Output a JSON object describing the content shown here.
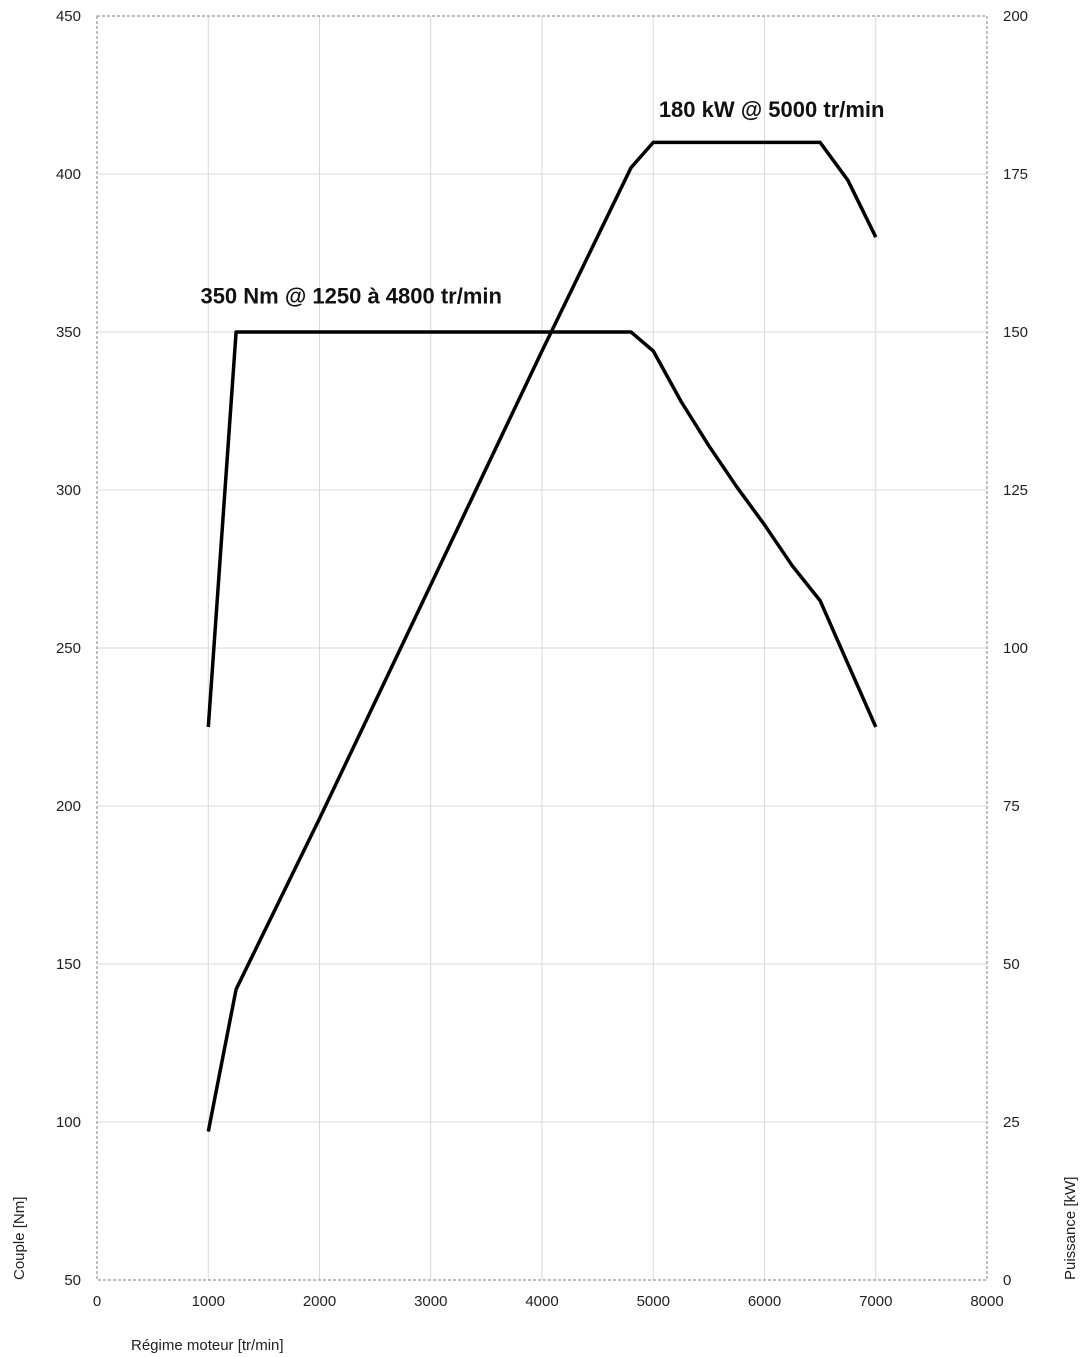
{
  "chart_data": {
    "type": "line",
    "title": "",
    "xlabel": "Régime moteur [tr/min]",
    "ylabel_left": "Couple [Nm]",
    "ylabel_right": "Puissance [kW]",
    "xlim": [
      0,
      8000
    ],
    "ylim_left": [
      50,
      450
    ],
    "ylim_right": [
      0,
      200
    ],
    "grid": true,
    "x_ticks": [
      "0",
      "1000",
      "2000",
      "3000",
      "4000",
      "5000",
      "6000",
      "7000",
      "8000"
    ],
    "y_left_ticks": [
      "50",
      "100",
      "150",
      "200",
      "250",
      "300",
      "350",
      "400",
      "450"
    ],
    "y_right_ticks": [
      "0",
      "25",
      "50",
      "75",
      "100",
      "125",
      "150",
      "175",
      "200"
    ],
    "series": [
      {
        "axis": "left",
        "x": [
          1000,
          1250,
          4800,
          5000,
          5250,
          5500,
          5750,
          6000,
          6250,
          6500,
          6750,
          7000
        ],
        "y": [
          225,
          350,
          350,
          344,
          328,
          314,
          301,
          289,
          276,
          265,
          245,
          225
        ]
      },
      {
        "axis": "right",
        "x": [
          1000,
          1250,
          2000,
          3000,
          4000,
          4800,
          5000,
          6500,
          6750,
          7000
        ],
        "y": [
          23.5,
          46,
          73,
          110,
          147,
          176,
          180,
          180,
          174,
          165
        ]
      }
    ],
    "annotations": [
      {
        "text": "180 kW @ 5000 tr/min",
        "x": 5050,
        "y_right": 184
      },
      {
        "text": "350 Nm @ 1250 à 4800 tr/min",
        "x": 930,
        "y_left": 359
      }
    ],
    "colors": {
      "series": "#000000",
      "grid": "#d9d9d9",
      "frame": "#808080"
    }
  }
}
